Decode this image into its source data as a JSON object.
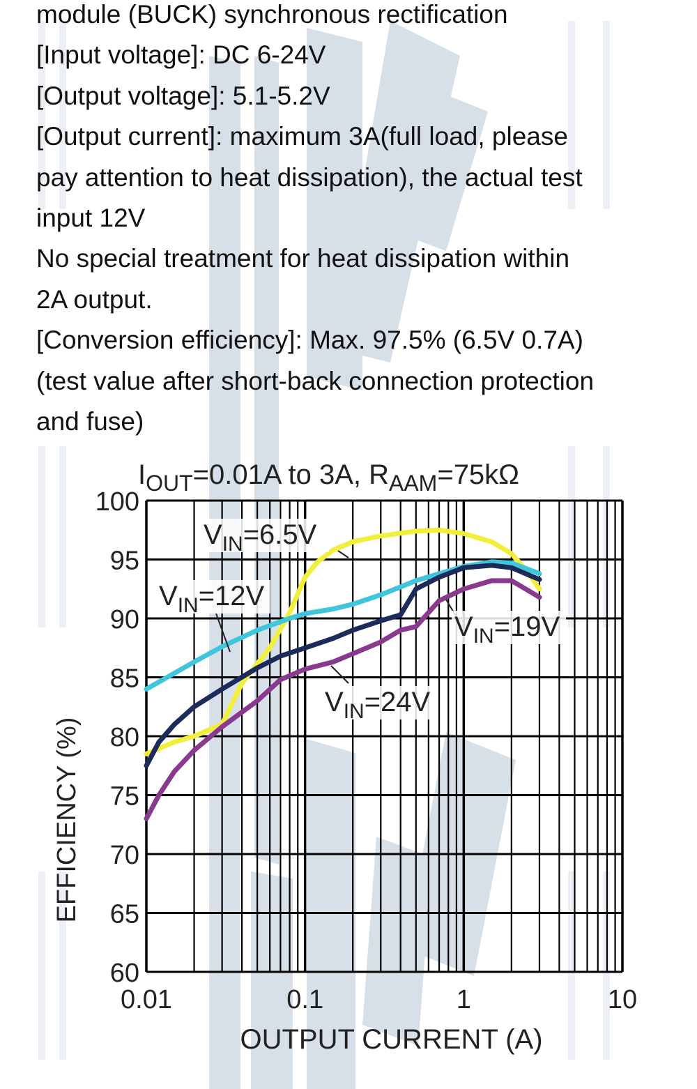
{
  "spec_lines": [
    "module (BUCK) synchronous rectification",
    "[Input voltage]: DC 6-24V",
    "[Output voltage]: 5.1-5.2V",
    "[Output current]: maximum 3A(full load, please",
    "pay attention to heat dissipation), the actual test",
    "input 12V",
    "No special treatment for heat dissipation within",
    "2A output.",
    "[Conversion efficiency]: Max. 97.5% (6.5V 0.7A)",
    "(test value after short-back connection protection",
    "and fuse)"
  ],
  "colors": {
    "watermark": "#b7c6d6",
    "grid": "#000000",
    "vin_6_5": "#f2ef3a",
    "vin_12": "#3fc6dc",
    "vin_19": "#1c2a5c",
    "vin_24": "#8a3a8e"
  },
  "chart_data": {
    "type": "line",
    "title": {
      "main": "I",
      "sub1": "OUT",
      "mid": "=0.01A to 3A, R",
      "sub2": "AAM",
      "end": "=75kΩ"
    },
    "xlabel": "OUTPUT CURRENT (A)",
    "ylabel": "EFFICIENCY (%)",
    "x_scale": "log",
    "xlim": [
      0.01,
      10
    ],
    "ylim": [
      60,
      100
    ],
    "x_ticks": [
      0.01,
      0.1,
      1,
      10
    ],
    "x_tick_labels": [
      "0.01",
      "0.1",
      "1",
      "10"
    ],
    "y_ticks": [
      60,
      65,
      70,
      75,
      80,
      85,
      90,
      95,
      100
    ],
    "y_tick_labels": [
      "60",
      "65",
      "70",
      "75",
      "80",
      "85",
      "90",
      "95",
      "100"
    ],
    "grid": true,
    "series": [
      {
        "key": "vin_6_5",
        "label": {
          "main": "V",
          "sub": "IN",
          "tail": "=6.5V"
        },
        "x": [
          0.01,
          0.015,
          0.02,
          0.03,
          0.04,
          0.06,
          0.08,
          0.1,
          0.12,
          0.15,
          0.2,
          0.3,
          0.5,
          0.7,
          1.0,
          1.5,
          2.0,
          2.5,
          3.0
        ],
        "y": [
          78.5,
          79.5,
          80.0,
          81.0,
          84.5,
          87.5,
          90.5,
          93.5,
          94.8,
          95.8,
          96.5,
          97.0,
          97.4,
          97.5,
          97.2,
          96.5,
          95.5,
          94.0,
          92.5
        ]
      },
      {
        "key": "vin_12",
        "label": {
          "main": "V",
          "sub": "IN",
          "tail": "=12V"
        },
        "x": [
          0.01,
          0.02,
          0.03,
          0.05,
          0.08,
          0.1,
          0.15,
          0.2,
          0.3,
          0.5,
          0.7,
          1.0,
          1.5,
          2.0,
          3.0
        ],
        "y": [
          84.0,
          86.3,
          87.6,
          89.0,
          90.0,
          90.4,
          90.8,
          91.2,
          92.0,
          93.2,
          93.8,
          94.4,
          94.8,
          94.7,
          93.8
        ]
      },
      {
        "key": "vin_19",
        "label": {
          "main": "V",
          "sub": "IN",
          "tail": "=19V"
        },
        "x": [
          0.01,
          0.012,
          0.015,
          0.02,
          0.03,
          0.05,
          0.07,
          0.1,
          0.15,
          0.2,
          0.3,
          0.4,
          0.5,
          0.7,
          1.0,
          1.5,
          2.0,
          3.0
        ],
        "y": [
          77.5,
          79.5,
          81.0,
          82.5,
          84.0,
          85.8,
          86.8,
          87.5,
          88.3,
          89.0,
          89.8,
          90.3,
          92.5,
          93.5,
          94.3,
          94.5,
          94.3,
          93.3
        ]
      },
      {
        "key": "vin_24",
        "label": {
          "main": "V",
          "sub": "IN",
          "tail": "=24V"
        },
        "x": [
          0.01,
          0.012,
          0.015,
          0.02,
          0.03,
          0.05,
          0.07,
          0.1,
          0.15,
          0.2,
          0.3,
          0.4,
          0.5,
          0.7,
          1.0,
          1.5,
          2.0,
          3.0
        ],
        "y": [
          73.0,
          75.0,
          77.0,
          78.8,
          80.8,
          83.0,
          84.8,
          85.7,
          86.3,
          87.0,
          88.0,
          89.0,
          89.3,
          91.5,
          92.5,
          93.2,
          93.2,
          91.8
        ]
      }
    ]
  }
}
